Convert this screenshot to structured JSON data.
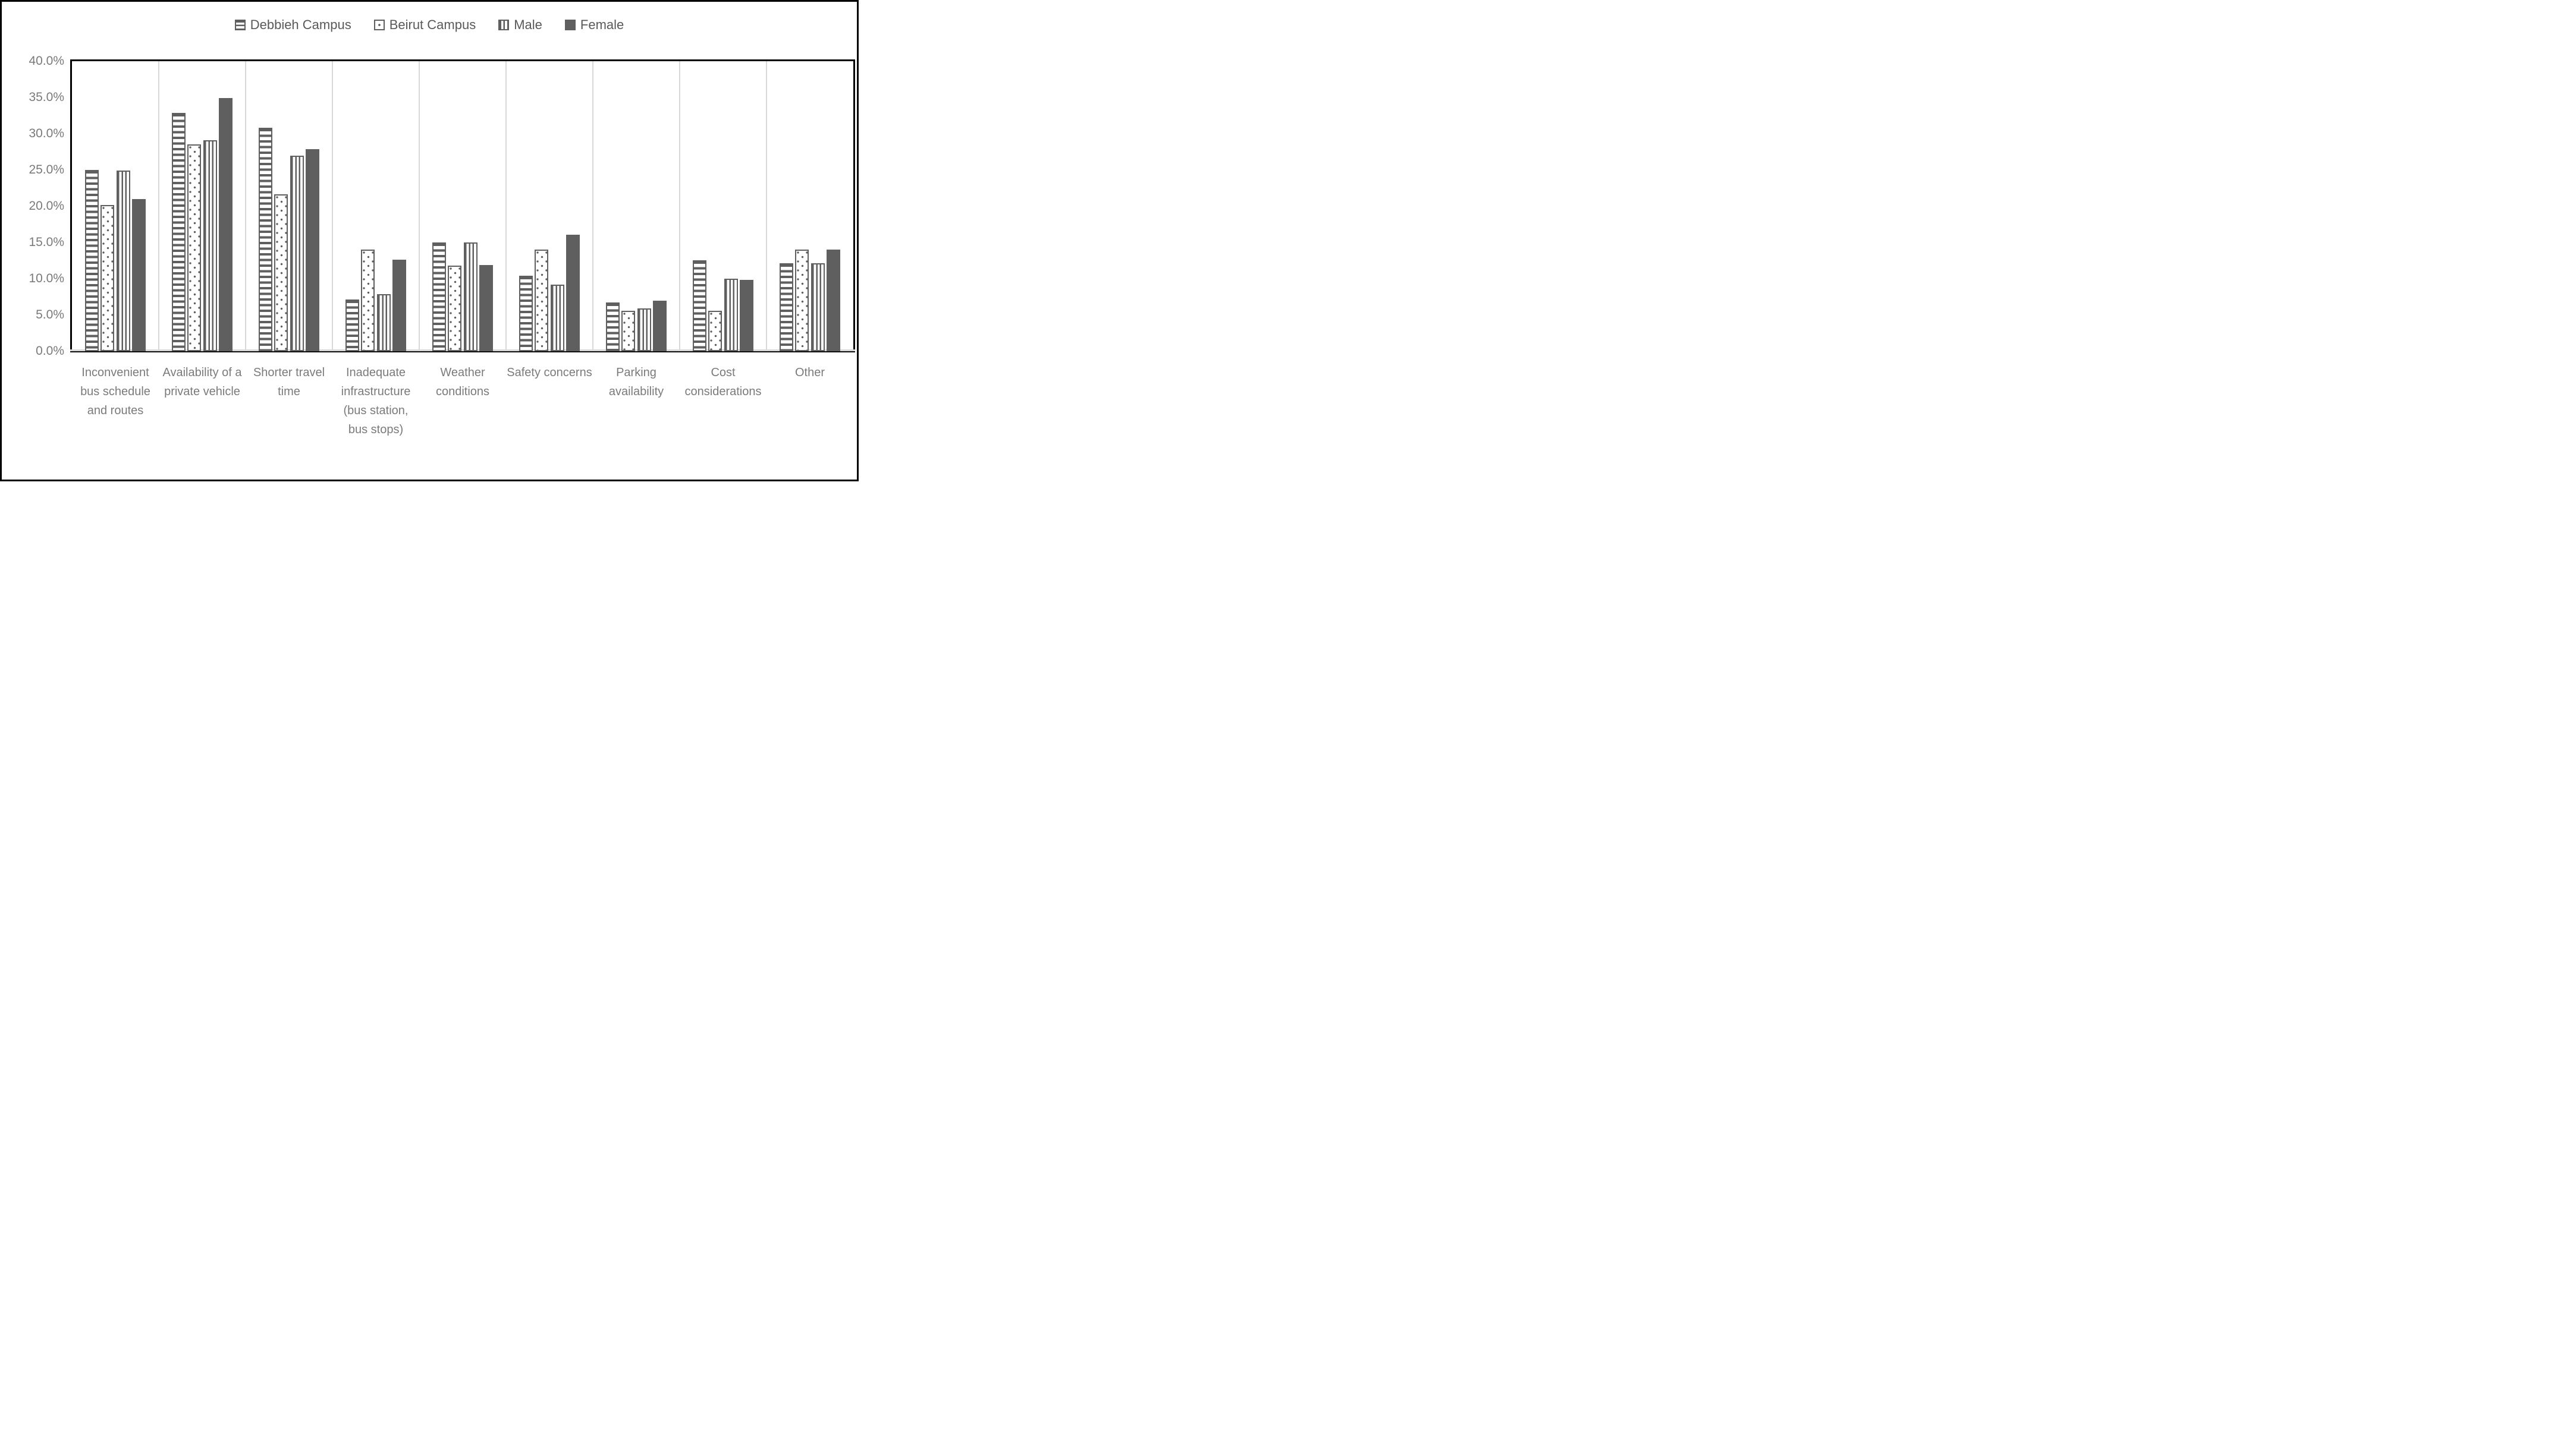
{
  "figure": {
    "background": "#ffffff",
    "border_color": "#000000"
  },
  "legend": {
    "position": "top-center",
    "text_color": "#595959",
    "items": [
      {
        "label": "Debbieh Campus",
        "pattern": "horizontal-stripes"
      },
      {
        "label": "Beirut Campus",
        "pattern": "dots"
      },
      {
        "label": "Male",
        "pattern": "vertical-stripes"
      },
      {
        "label": "Female",
        "pattern": "solid"
      }
    ]
  },
  "chart_data": {
    "type": "bar",
    "title": "",
    "xlabel": "",
    "ylabel": "",
    "ylim": [
      0,
      40
    ],
    "ytick_step": 5,
    "yticks": [
      "40.0%",
      "35.0%",
      "30.0%",
      "25.0%",
      "20.0%",
      "15.0%",
      "10.0%",
      "5.0%",
      "0.0%"
    ],
    "grid": "vertical-category-separators-only",
    "legend_position": "top-center",
    "bar_color": "#5f5f5f",
    "separator_color": "#d9d9d9",
    "axis_text_color": "#7a7a7a",
    "categories": [
      "Inconvenient bus schedule and routes",
      "Availability of a private vehicle",
      "Shorter travel time",
      "Inadequate infrastructure (bus station, bus stops)",
      "Weather conditions",
      "Safety concerns",
      "Parking availability",
      "Cost considerations",
      "Other"
    ],
    "series": [
      {
        "name": "Debbieh Campus",
        "pattern": "horizontal-stripes",
        "values": [
          25.0,
          32.9,
          30.8,
          7.1,
          15.0,
          10.4,
          6.7,
          12.5,
          12.1
        ]
      },
      {
        "name": "Beirut Campus",
        "pattern": "dots",
        "values": [
          20.2,
          28.5,
          21.6,
          14.0,
          11.8,
          14.0,
          5.6,
          5.6,
          14.0
        ]
      },
      {
        "name": "Male",
        "pattern": "vertical-stripes",
        "values": [
          24.9,
          29.1,
          27.0,
          7.9,
          15.0,
          9.2,
          5.9,
          10.0,
          12.1
        ]
      },
      {
        "name": "Female",
        "pattern": "solid",
        "values": [
          21.0,
          34.9,
          27.9,
          12.6,
          11.9,
          16.1,
          7.0,
          9.8,
          14.0
        ]
      }
    ]
  }
}
